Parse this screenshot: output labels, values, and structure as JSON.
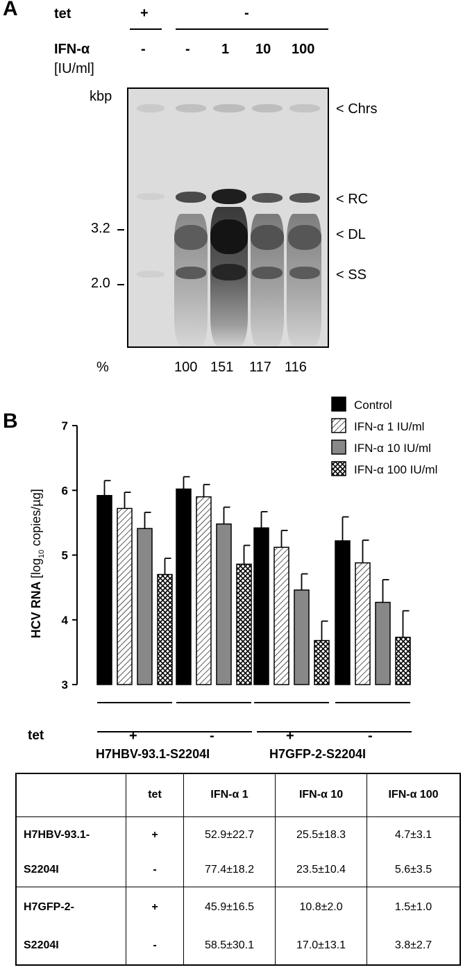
{
  "panelA": {
    "letter": "A",
    "tet_label": "tet",
    "tet_values": [
      "+",
      "-"
    ],
    "ifn_label": "IFN-α",
    "ifn_units": "[IU/ml]",
    "ifn_values": [
      "-",
      "-",
      "1",
      "10",
      "100"
    ],
    "kbp_label": "kbp",
    "size_markers": [
      "3.2",
      "2.0"
    ],
    "band_labels": [
      "< Chrs",
      "< RC",
      "< DL",
      "< SS"
    ],
    "percent_label": "%",
    "percent_values": [
      "100",
      "151",
      "117",
      "116"
    ]
  },
  "chart_data": {
    "type": "bar",
    "ylabel": "HCV RNA [log10 copies/µg]",
    "ylabel_main": "HCV RNA",
    "ylabel_pre": "[log",
    "ylabel_sub": "10",
    "ylabel_post": " copies/µg]",
    "ylim": [
      3,
      7
    ],
    "yticks": [
      "3",
      "4",
      "5",
      "6",
      "7"
    ],
    "groups": [
      {
        "tet": "+",
        "cell_line": "H7HBV-93.1-S2204I"
      },
      {
        "tet": "-",
        "cell_line": "H7HBV-93.1-S2204I"
      },
      {
        "tet": "+",
        "cell_line": "H7GFP-2-S2204I"
      },
      {
        "tet": "-",
        "cell_line": "H7GFP-2-S2204I"
      }
    ],
    "series": [
      {
        "name": "Control",
        "values": [
          5.92,
          6.02,
          5.42,
          5.22
        ],
        "errors": [
          0.23,
          0.19,
          0.25,
          0.37
        ]
      },
      {
        "name": "IFN-α 1 IU/ml",
        "values": [
          5.72,
          5.9,
          5.12,
          4.88
        ],
        "errors": [
          0.25,
          0.19,
          0.26,
          0.35
        ]
      },
      {
        "name": "IFN-α 10 IU/ml",
        "values": [
          5.41,
          5.48,
          4.46,
          4.27
        ],
        "errors": [
          0.25,
          0.26,
          0.25,
          0.35
        ]
      },
      {
        "name": "IFN-α 100 IU/ml",
        "values": [
          4.7,
          4.86,
          3.68,
          3.73
        ],
        "errors": [
          0.25,
          0.29,
          0.3,
          0.41
        ]
      }
    ],
    "tet_label": "tet",
    "cell_lines": [
      "H7HBV-93.1-S2204I",
      "H7GFP-2-S2204I"
    ],
    "colors": {
      "Control": "#000000",
      "IFN-α 10 IU/ml": "#888888",
      "IFN-α 1 IU/ml": "hatch",
      "IFN-α 100 IU/ml": "crosshatch"
    }
  },
  "panelB": {
    "letter": "B"
  },
  "table": {
    "headers": [
      "",
      "tet",
      "IFN-α 1",
      "IFN-α 10",
      "IFN-α 100"
    ],
    "rows": [
      {
        "cell": "H7HBV-93.1-",
        "tet": "+",
        "v1": "52.9±22.7",
        "v10": "25.5±18.3",
        "v100": "4.7±3.1"
      },
      {
        "cell": "S2204I",
        "tet": "-",
        "v1": "77.4±18.2",
        "v10": "23.5±10.4",
        "v100": "5.6±3.5"
      },
      {
        "cell": "H7GFP-2-",
        "tet": "+",
        "v1": "45.9±16.5",
        "v10": "10.8±2.0",
        "v100": "1.5±1.0"
      },
      {
        "cell": "S2204I",
        "tet": "-",
        "v1": "58.5±30.1",
        "v10": "17.0±13.1",
        "v100": "3.8±2.7"
      }
    ]
  }
}
